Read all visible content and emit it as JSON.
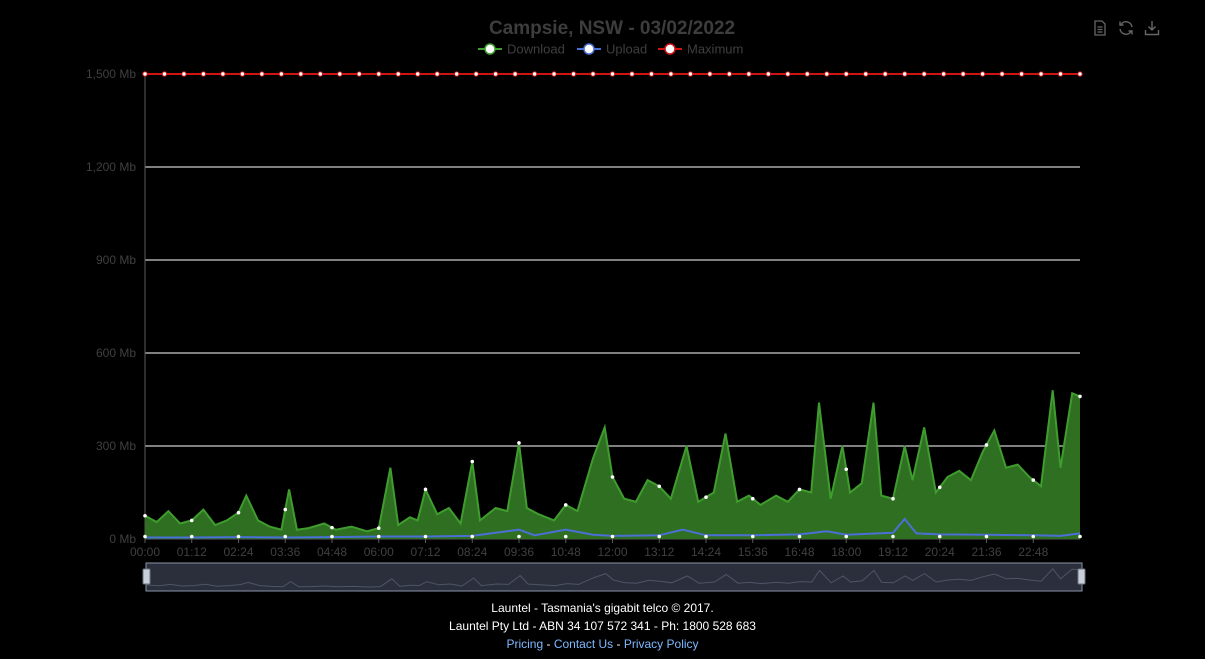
{
  "chart_data": {
    "type": "area",
    "title": "Campsie, NSW - 03/02/2022",
    "legend": {
      "placement": "top-center",
      "items": [
        "Download",
        "Upload",
        "Maximum"
      ]
    },
    "colors": {
      "download": "#3f9d2e",
      "download_fill": "#2f6f22",
      "upload": "#4a6fd6",
      "maximum": "#d01414",
      "grid": "#ffffff",
      "axis": "#5a5a5a"
    },
    "y_axis": {
      "ticks": [
        "0 Mb",
        "300 Mb",
        "600 Mb",
        "900 Mb",
        "1,200 Mb",
        "1,500 Mb"
      ],
      "range": [
        0,
        1500
      ],
      "unit": "Mb"
    },
    "x_axis": {
      "ticks": [
        "00:00",
        "01:12",
        "02:24",
        "03:36",
        "04:48",
        "06:00",
        "07:12",
        "08:24",
        "09:36",
        "10:48",
        "12:00",
        "13:12",
        "14:24",
        "15:36",
        "16:48",
        "18:00",
        "19:12",
        "20:24",
        "21:36",
        "22:48"
      ],
      "range_hours": [
        0,
        24
      ]
    },
    "grid": true,
    "data_zoom": true,
    "series": [
      {
        "name": "Download",
        "points_hours_mb": [
          [
            0,
            75
          ],
          [
            0.3,
            55
          ],
          [
            0.6,
            90
          ],
          [
            0.9,
            50
          ],
          [
            1.2,
            60
          ],
          [
            1.5,
            95
          ],
          [
            1.8,
            45
          ],
          [
            2.1,
            60
          ],
          [
            2.4,
            85
          ],
          [
            2.6,
            140
          ],
          [
            2.9,
            60
          ],
          [
            3.2,
            40
          ],
          [
            3.5,
            30
          ],
          [
            3.7,
            160
          ],
          [
            3.9,
            30
          ],
          [
            4.2,
            35
          ],
          [
            4.6,
            50
          ],
          [
            4.9,
            30
          ],
          [
            5.3,
            40
          ],
          [
            5.7,
            25
          ],
          [
            6.0,
            35
          ],
          [
            6.3,
            230
          ],
          [
            6.5,
            45
          ],
          [
            6.8,
            70
          ],
          [
            7.0,
            60
          ],
          [
            7.2,
            160
          ],
          [
            7.5,
            80
          ],
          [
            7.8,
            100
          ],
          [
            8.1,
            50
          ],
          [
            8.4,
            250
          ],
          [
            8.6,
            60
          ],
          [
            9.0,
            100
          ],
          [
            9.3,
            90
          ],
          [
            9.6,
            310
          ],
          [
            9.8,
            100
          ],
          [
            10.1,
            80
          ],
          [
            10.5,
            60
          ],
          [
            10.8,
            110
          ],
          [
            11.1,
            90
          ],
          [
            11.5,
            260
          ],
          [
            11.8,
            360
          ],
          [
            12.0,
            200
          ],
          [
            12.3,
            130
          ],
          [
            12.6,
            120
          ],
          [
            12.9,
            190
          ],
          [
            13.2,
            170
          ],
          [
            13.5,
            130
          ],
          [
            13.9,
            300
          ],
          [
            14.2,
            120
          ],
          [
            14.6,
            150
          ],
          [
            14.9,
            340
          ],
          [
            15.2,
            120
          ],
          [
            15.5,
            140
          ],
          [
            15.8,
            110
          ],
          [
            16.2,
            140
          ],
          [
            16.5,
            120
          ],
          [
            16.8,
            160
          ],
          [
            17.1,
            150
          ],
          [
            17.3,
            440
          ],
          [
            17.6,
            130
          ],
          [
            17.9,
            300
          ],
          [
            18.1,
            150
          ],
          [
            18.4,
            180
          ],
          [
            18.7,
            440
          ],
          [
            18.9,
            140
          ],
          [
            19.2,
            130
          ],
          [
            19.5,
            300
          ],
          [
            19.7,
            190
          ],
          [
            20.0,
            360
          ],
          [
            20.3,
            150
          ],
          [
            20.6,
            200
          ],
          [
            20.9,
            220
          ],
          [
            21.2,
            190
          ],
          [
            21.5,
            280
          ],
          [
            21.8,
            350
          ],
          [
            22.1,
            230
          ],
          [
            22.4,
            240
          ],
          [
            22.7,
            200
          ],
          [
            23.0,
            170
          ],
          [
            23.3,
            480
          ],
          [
            23.5,
            230
          ],
          [
            23.8,
            470
          ],
          [
            24.0,
            460
          ]
        ]
      },
      {
        "name": "Upload",
        "points_hours_mb": [
          [
            0,
            5
          ],
          [
            1.2,
            5
          ],
          [
            2.4,
            6
          ],
          [
            3.6,
            5
          ],
          [
            4.8,
            6
          ],
          [
            6.0,
            8
          ],
          [
            7.2,
            8
          ],
          [
            8.4,
            10
          ],
          [
            9.6,
            30
          ],
          [
            10.0,
            12
          ],
          [
            10.8,
            30
          ],
          [
            11.5,
            14
          ],
          [
            12.0,
            10
          ],
          [
            13.2,
            12
          ],
          [
            13.8,
            30
          ],
          [
            14.4,
            12
          ],
          [
            15.6,
            12
          ],
          [
            16.8,
            15
          ],
          [
            17.5,
            25
          ],
          [
            18.0,
            14
          ],
          [
            19.2,
            20
          ],
          [
            19.5,
            65
          ],
          [
            19.8,
            18
          ],
          [
            20.4,
            15
          ],
          [
            21.6,
            14
          ],
          [
            22.8,
            12
          ],
          [
            23.5,
            10
          ],
          [
            24.0,
            18
          ]
        ]
      },
      {
        "name": "Maximum",
        "constant_mb": 1500
      }
    ]
  },
  "toolbox": {
    "icons": [
      "data-view-icon",
      "restore-icon",
      "save-image-icon"
    ]
  },
  "footer": {
    "line1": "Launtel - Tasmania's gigabit telco © 2017.",
    "line2": "Launtel Pty Ltd - ABN 34 107 572 341 - Ph: 1800 528 683",
    "links": [
      "Pricing",
      "Contact Us",
      "Privacy Policy"
    ],
    "separator": " - "
  }
}
